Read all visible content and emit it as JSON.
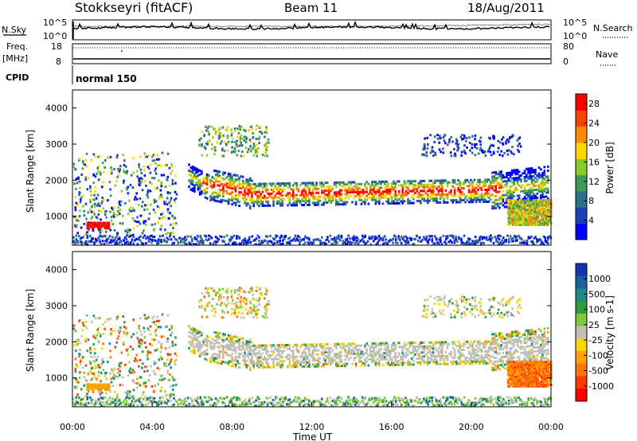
{
  "header": {
    "station": "Stokkseyri (fitACF)",
    "beam": "Beam 11",
    "date": "18/Aug/2011"
  },
  "top_panels": {
    "nsky_label": "N.Sky",
    "nsearch_label": "N.Search",
    "exp_hi": "10^5",
    "exp_lo": "10^0",
    "freq_label_1": "Freq.",
    "freq_label_2": "[MHz]",
    "freq_ticks": [
      "18",
      "8"
    ],
    "nave_label": "Nave",
    "nave_ticks": [
      "80",
      "0"
    ],
    "cpid_label": "CPID",
    "cpid_value": "normal 150"
  },
  "colors": {
    "power_scale": [
      "#0000ff",
      "#1c3fbf",
      "#2e6f8a",
      "#3c9a55",
      "#8acc2a",
      "#ffd700",
      "#ff8c00",
      "#ff4400",
      "#ff0000"
    ],
    "velocity_scale": [
      "#1533b5",
      "#19609e",
      "#1d8a8a",
      "#2f9a3e",
      "#7ecb3a",
      "#c0c0b8",
      "#ffd400",
      "#ffa000",
      "#ff7600",
      "#ff3a00",
      "#ff0000"
    ]
  },
  "chart_data": [
    {
      "type": "heatmap",
      "name": "power",
      "x": [
        "00:00",
        "04:00",
        "08:00",
        "12:00",
        "16:00",
        "20:00",
        "00:00"
      ],
      "y_ticks": [
        1000,
        2000,
        3000,
        4000
      ],
      "ylabel": "Slant Range [km]",
      "ylim": [
        200,
        4500
      ],
      "xlim_hours": [
        0,
        24
      ],
      "colorbar_label": "Power [dB]",
      "colorbar_ticks": [
        4,
        8,
        12,
        16,
        20,
        24,
        28
      ],
      "colorbar_range": [
        0,
        30
      ]
    },
    {
      "type": "heatmap",
      "name": "velocity",
      "x": [
        "00:00",
        "04:00",
        "08:00",
        "12:00",
        "16:00",
        "20:00",
        "00:00"
      ],
      "y_ticks": [
        1000,
        2000,
        3000,
        4000
      ],
      "ylabel": "Slant Range [km]",
      "xlabel": "Time UT",
      "ylim": [
        200,
        4500
      ],
      "xlim_hours": [
        0,
        24
      ],
      "colorbar_label": "Velocity [m s-1]",
      "colorbar_ticks": [
        "1000",
        "500",
        "100",
        "25",
        "-25",
        "-100",
        "-500",
        "-1000"
      ]
    }
  ]
}
